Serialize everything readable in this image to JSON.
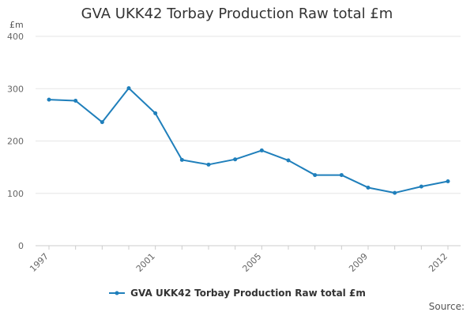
{
  "chart_data": {
    "type": "line",
    "title": "GVA UKK42 Torbay Production Raw total £m",
    "y_unit": "£m",
    "xlabel": "",
    "ylabel": "",
    "ylim": [
      0,
      400
    ],
    "y_ticks": [
      0,
      100,
      200,
      300,
      400
    ],
    "x_tick_labels": [
      "1997",
      "2001",
      "2005",
      "2009",
      "2012"
    ],
    "grid": "horizontal",
    "legend_position": "bottom",
    "source_label": "Source:",
    "x": [
      1997,
      1998,
      1999,
      2000,
      2001,
      2002,
      2003,
      2004,
      2005,
      2006,
      2007,
      2008,
      2009,
      2010,
      2011,
      2012
    ],
    "series": [
      {
        "name": "GVA UKK42 Torbay Production Raw total £m",
        "color": "#1f7fbb",
        "values": [
          279,
          277,
          236,
          301,
          253,
          164,
          155,
          165,
          182,
          163,
          135,
          135,
          111,
          101,
          113,
          123
        ]
      }
    ]
  }
}
